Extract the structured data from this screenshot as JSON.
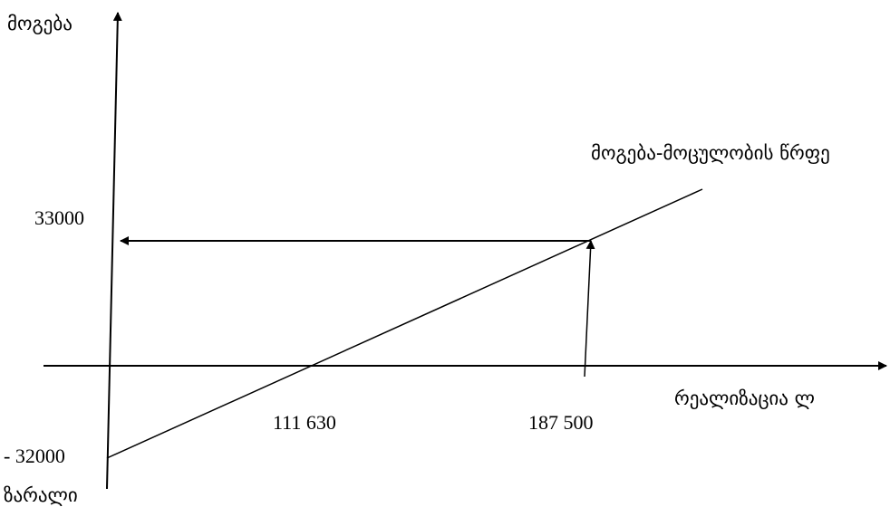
{
  "diagram": {
    "y_axis_top_label": "მოგება",
    "y_axis_bottom_label": "ზარალი",
    "x_axis_label": "რეალიზაცია ლ",
    "line_label": "მოგება-მოცულობის წრფე",
    "y_tick_profit": "33000",
    "y_tick_loss": "- 32000",
    "x_tick_breakeven": "111 630",
    "x_tick_target": "187 500"
  },
  "colors": {
    "stroke": "#000000",
    "background": "#ffffff"
  }
}
